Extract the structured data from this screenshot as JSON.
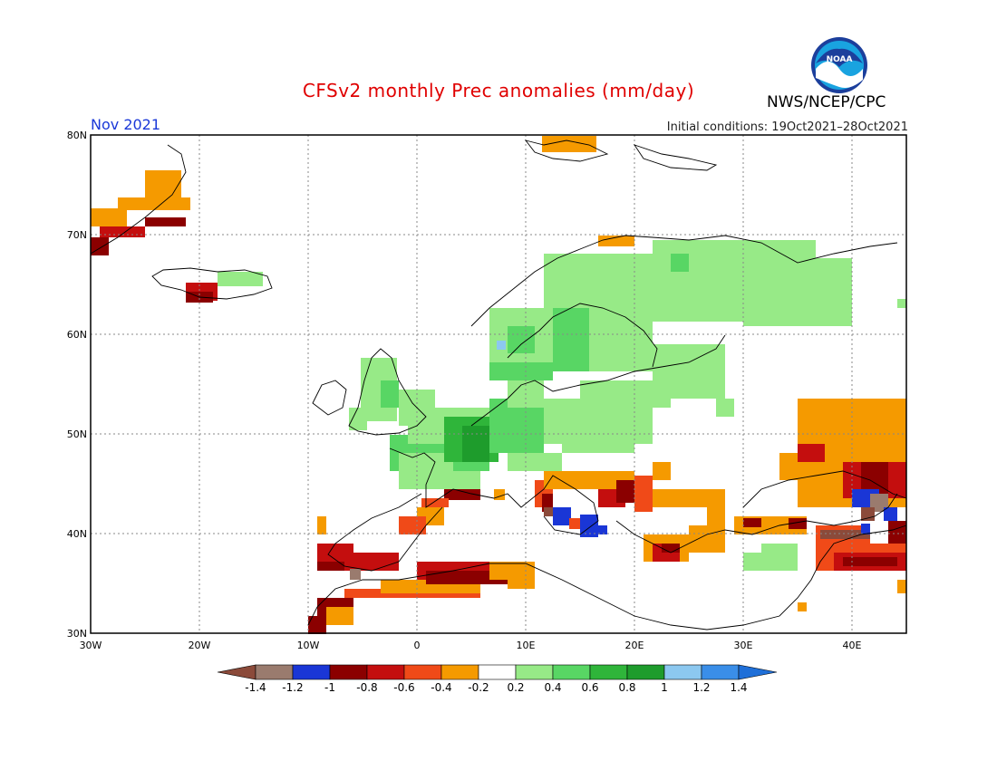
{
  "title": "CFSv2 monthly Prec anomalies (mm/day)",
  "agency": "NWS/NCEP/CPC",
  "logo_text": "NOAA",
  "month": "Nov 2021",
  "initial_conditions": "Initial conditions: 19Oct2021–28Oct2021",
  "lat_labels": [
    "80N",
    "70N",
    "60N",
    "50N",
    "40N",
    "30N"
  ],
  "lon_labels": [
    "30W",
    "20W",
    "10W",
    "0",
    "10E",
    "20E",
    "30E",
    "40E"
  ],
  "colorbar": {
    "ticks": [
      "-1.4",
      "-1.2",
      "-1",
      "-0.8",
      "-0.6",
      "-0.4",
      "-0.2",
      "0.2",
      "0.4",
      "0.6",
      "0.8",
      "1",
      "1.2",
      "1.4"
    ],
    "colors": [
      "#8b4a3a",
      "#9a7b6e",
      "#1a36d6",
      "#8b0000",
      "#c40e0e",
      "#f04a18",
      "#f59a00",
      "#ffffff",
      "#97ea87",
      "#58d664",
      "#2fb53a",
      "#1e9c2c",
      "#8cc8f0",
      "#3a8ee8",
      "#1f6fd8"
    ]
  }
}
